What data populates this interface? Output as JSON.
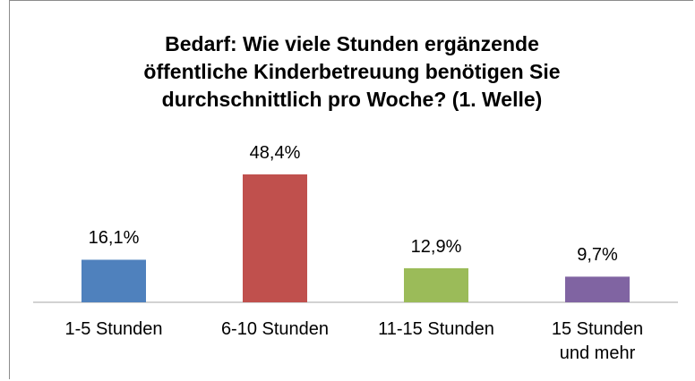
{
  "chart_data": {
    "type": "bar",
    "title": "Bedarf: Wie viele Stunden ergänzende\nöffentliche Kinderbetreuung benötigen Sie\ndurchschnittlich pro Woche? (1. Welle)",
    "categories": [
      "1-5 Stunden",
      "6-10 Stunden",
      "11-15 Stunden",
      "15 Stunden\nund mehr"
    ],
    "values": [
      16.1,
      48.4,
      12.9,
      9.7
    ],
    "value_labels": [
      "16,1%",
      "48,4%",
      "12,9%",
      "9,7%"
    ],
    "colors": [
      "#4f81bd",
      "#c0504d",
      "#9bbb59",
      "#8064a2"
    ]
  }
}
